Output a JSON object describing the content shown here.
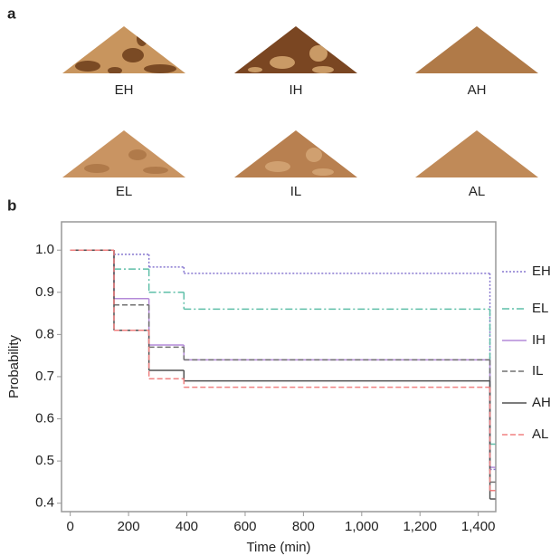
{
  "panel_labels": [
    "a",
    "b"
  ],
  "images": [
    "EH",
    "IH",
    "AH",
    "EL",
    "IL",
    "AL"
  ],
  "chart_data": {
    "type": "step",
    "x_label": "Time (min)",
    "y_label": "Probability",
    "xlim": [
      -30,
      1460
    ],
    "ylim": [
      0.38,
      1.067
    ],
    "xticks": [
      0,
      200,
      400,
      600,
      800,
      {
        "value": 1000,
        "label": "1,000"
      },
      {
        "value": 1200,
        "label": "1,200"
      },
      {
        "value": 1400,
        "label": "1,400"
      }
    ],
    "yticks": [
      0.4,
      0.5,
      0.6,
      0.7,
      0.8,
      0.9,
      {
        "value": 1,
        "label": "1.0"
      }
    ],
    "x": [
      0,
      150,
      270,
      390,
      1440
    ],
    "series": [
      {
        "name": "EH",
        "color": "#8878d0",
        "dash": "2,2",
        "values": [
          1.0,
          0.99,
          0.96,
          0.945,
          0.48
        ]
      },
      {
        "name": "EL",
        "color": "#5fbfa8",
        "dash": "8,3,2,3",
        "values": [
          1.0,
          0.955,
          0.9,
          0.86,
          0.54
        ]
      },
      {
        "name": "IH",
        "color": "#b48ad8",
        "dash": "none",
        "values": [
          1.0,
          0.885,
          0.775,
          0.74,
          0.485
        ]
      },
      {
        "name": "IL",
        "color": "#707070",
        "dash": "6,3",
        "values": [
          1.0,
          0.87,
          0.77,
          0.74,
          0.45
        ]
      },
      {
        "name": "AH",
        "color": "#505050",
        "dash": "none",
        "values": [
          1.0,
          0.81,
          0.715,
          0.69,
          0.41
        ]
      },
      {
        "name": "AL",
        "color": "#f08080",
        "dash": "6,3",
        "values": [
          1.0,
          0.81,
          0.695,
          0.675,
          0.43
        ]
      }
    ]
  }
}
